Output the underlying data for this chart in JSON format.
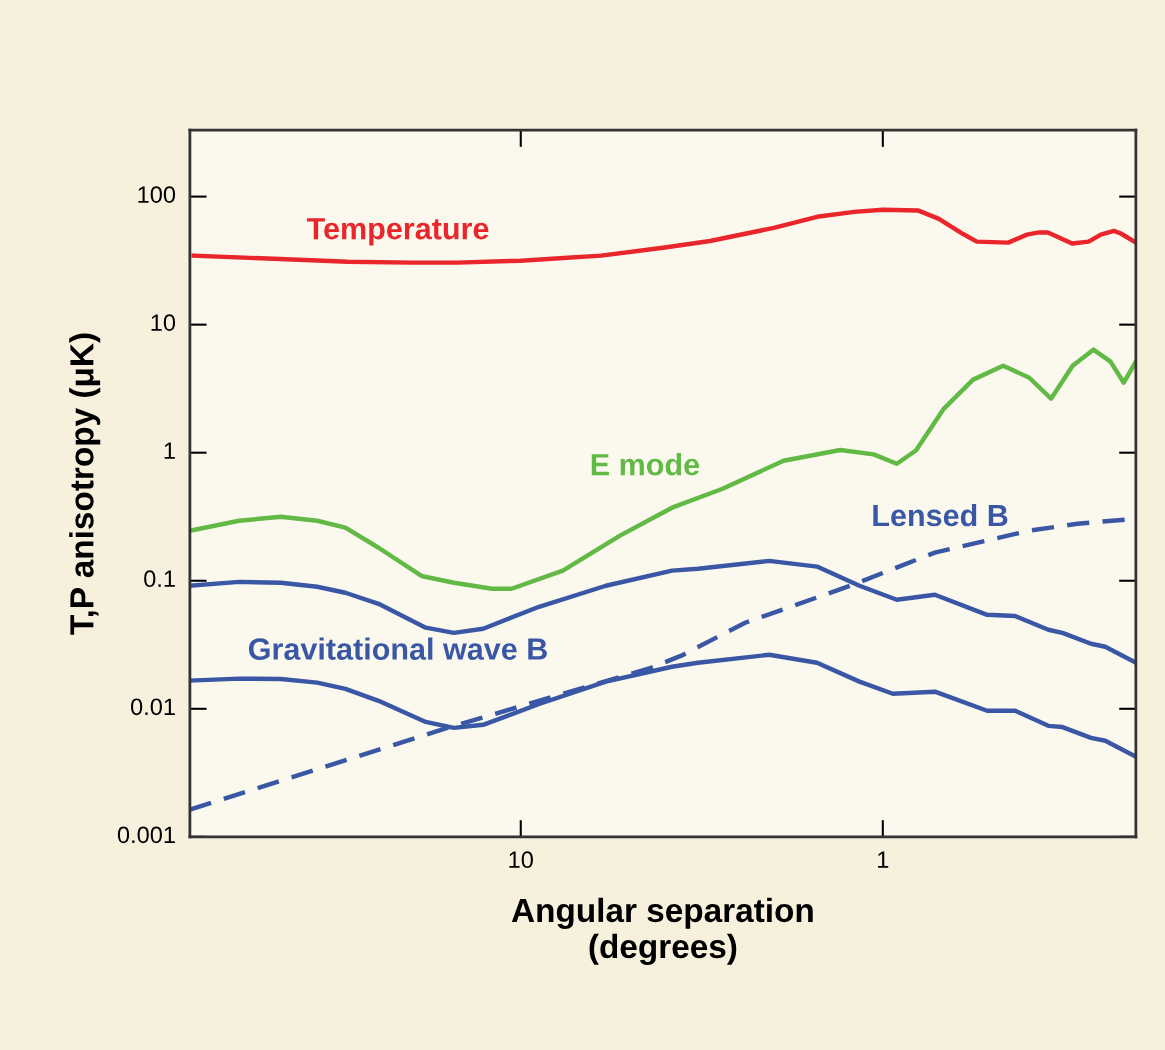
{
  "chart_data": {
    "type": "line",
    "xlabel": "Angular separation\n(degrees)",
    "ylabel": "T,P anisotropy (μK)",
    "log": "xy",
    "xlim": [
      82,
      0.2
    ],
    "xticks": [
      10,
      1
    ],
    "ylim": [
      0.001,
      330
    ],
    "yticks": [
      0.001,
      0.01,
      0.1,
      1,
      10,
      100
    ],
    "grid": false,
    "legend": false,
    "marker": "none",
    "series": [
      {
        "name": "Temperature",
        "color": "#e8262b",
        "line_style": "solid",
        "x": [
          80,
          50,
          30,
          20,
          15,
          10,
          6,
          4,
          3,
          2,
          1.5,
          1.2,
          1,
          0.8,
          0.7,
          0.6,
          0.55,
          0.45,
          0.4,
          0.37,
          0.35,
          0.3,
          0.27,
          0.25,
          0.23,
          0.22,
          0.2
        ],
        "values": [
          34.6,
          32.8,
          31,
          30.5,
          30.5,
          31.6,
          34.6,
          40,
          45,
          57,
          70,
          76,
          79,
          78,
          67,
          51,
          44.5,
          43.7,
          50.5,
          52.5,
          52.5,
          43,
          44.5,
          50.5,
          54,
          51.5,
          43.7
        ]
      },
      {
        "name": "E mode",
        "color": "#62b946",
        "line_style": "solid",
        "x": [
          82,
          60,
          46,
          36.5,
          30.5,
          24.7,
          18.8,
          15.3,
          12,
          10.6,
          7.65,
          5.32,
          3.82,
          2.77,
          1.88,
          1.31,
          1.06,
          0.915,
          0.81,
          0.678,
          0.563,
          0.465,
          0.394,
          0.343,
          0.299,
          0.262,
          0.235,
          0.216,
          0.2
        ],
        "values": [
          0.246,
          0.294,
          0.316,
          0.294,
          0.26,
          0.181,
          0.109,
          0.0965,
          0.0866,
          0.0866,
          0.12,
          0.225,
          0.372,
          0.523,
          0.866,
          1.05,
          0.97,
          0.82,
          1.04,
          2.21,
          3.72,
          4.78,
          3.85,
          2.64,
          4.78,
          6.38,
          5.14,
          3.52,
          5.14
        ]
      },
      {
        "name": "Gravitational wave B",
        "color": "#3a57a6",
        "line_style": "solid",
        "x": [
          82,
          60,
          46,
          36.5,
          30.5,
          24.7,
          18.3,
          15.3,
          12.7,
          8.9,
          5.82,
          3.82,
          3.24,
          2.06,
          1.52,
          1.16,
          0.915,
          0.718,
          0.515,
          0.431,
          0.349,
          0.319,
          0.266,
          0.243,
          0.2
        ],
        "values": [
          0.0914,
          0.098,
          0.0965,
          0.0898,
          0.0806,
          0.066,
          0.043,
          0.0392,
          0.0422,
          0.0626,
          0.0914,
          0.12,
          0.124,
          0.143,
          0.129,
          0.0914,
          0.071,
          0.0778,
          0.0542,
          0.053,
          0.0414,
          0.0392,
          0.0322,
          0.0305,
          0.0229
        ]
      },
      {
        "color": "#3a57a6",
        "line_style": "solid",
        "x": [
          82,
          60,
          46,
          36.5,
          30.5,
          24.7,
          18.3,
          15.3,
          12.7,
          8.9,
          5.82,
          3.82,
          3.24,
          2.06,
          1.52,
          1.16,
          0.938,
          0.718,
          0.515,
          0.431,
          0.349,
          0.319,
          0.266,
          0.243,
          0.2
        ],
        "values": [
          0.0166,
          0.0172,
          0.0171,
          0.016,
          0.0143,
          0.01155,
          0.0079,
          0.0071,
          0.0075,
          0.0109,
          0.0163,
          0.0213,
          0.0229,
          0.0264,
          0.0229,
          0.0163,
          0.0131,
          0.0136,
          0.00965,
          0.00965,
          0.00736,
          0.0072,
          0.00593,
          0.00563,
          0.00422
        ]
      },
      {
        "name": "Lensed B",
        "color": "#3a57a6",
        "line_style": "dashed",
        "x": [
          82,
          16.2,
          4.37,
          3.6,
          2.4,
          1.23,
          0.718,
          0.394,
          0.29,
          0.2
        ],
        "values": [
          0.00163,
          0.007,
          0.0209,
          0.026,
          0.047,
          0.0914,
          0.166,
          0.246,
          0.279,
          0.305
        ]
      }
    ]
  }
}
